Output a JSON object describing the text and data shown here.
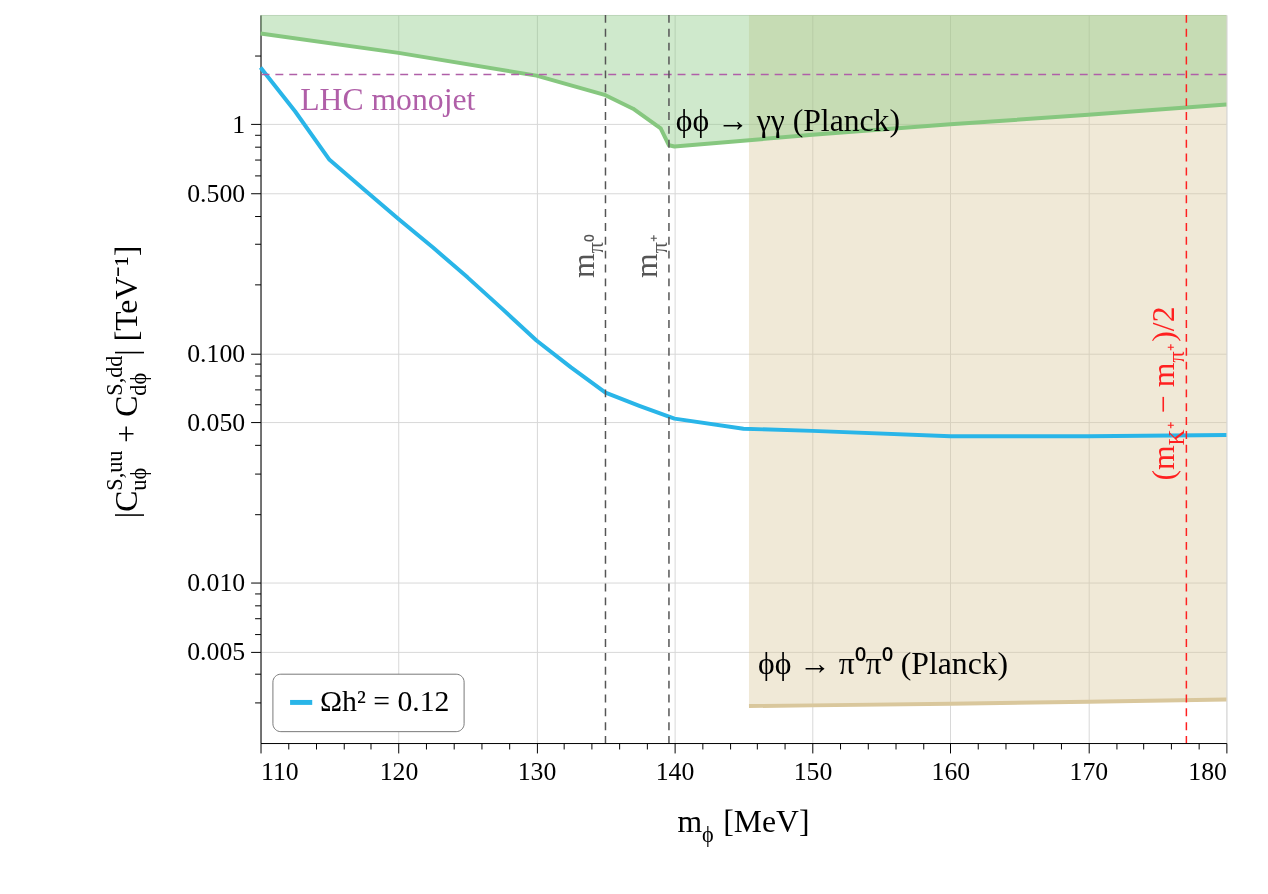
{
  "chart_data": {
    "type": "line",
    "xlabel": "m$_{ϕ}$ [MeV]",
    "ylabel": "|C$_{uϕ}$$^{S,uu}$ + C$_{dϕ}$$^{S,dd}$| [TeV⁻¹]",
    "xlim": [
      110,
      180
    ],
    "ylim": [
      0.002,
      3
    ],
    "log": "y",
    "grid": true,
    "legend": "bottom left",
    "xticks": [
      110,
      {
        "value": 112,
        "label": null
      },
      {
        "value": 114,
        "label": null
      },
      {
        "value": 116,
        "label": null
      },
      {
        "value": 118,
        "label": null
      },
      120,
      {
        "value": 122,
        "label": null
      },
      {
        "value": 124,
        "label": null
      },
      {
        "value": 126,
        "label": null
      },
      {
        "value": 128,
        "label": null
      },
      130,
      {
        "value": 132,
        "label": null
      },
      {
        "value": 134,
        "label": null
      },
      {
        "value": 136,
        "label": null
      },
      {
        "value": 138,
        "label": null
      },
      140,
      {
        "value": 142,
        "label": null
      },
      {
        "value": 144,
        "label": null
      },
      {
        "value": 146,
        "label": null
      },
      {
        "value": 148,
        "label": null
      },
      150,
      {
        "value": 152,
        "label": null
      },
      {
        "value": 154,
        "label": null
      },
      {
        "value": 156,
        "label": null
      },
      {
        "value": 158,
        "label": null
      },
      160,
      {
        "value": 162,
        "label": null
      },
      {
        "value": 164,
        "label": null
      },
      {
        "value": 166,
        "label": null
      },
      {
        "value": 168,
        "label": null
      },
      170,
      {
        "value": 172,
        "label": null
      },
      {
        "value": 174,
        "label": null
      },
      {
        "value": 176,
        "label": null
      },
      {
        "value": 178,
        "label": null
      },
      180
    ],
    "yticks": [
      {
        "value": 0.003,
        "label": null
      },
      {
        "value": 0.004,
        "label": null
      },
      {
        "value": 0.005,
        "label": "0.005"
      },
      {
        "value": 0.006,
        "label": null
      },
      {
        "value": 0.007,
        "label": null
      },
      {
        "value": 0.008,
        "label": null
      },
      {
        "value": 0.009,
        "label": null
      },
      {
        "value": 0.01,
        "label": "0.010"
      },
      {
        "value": 0.02,
        "label": null
      },
      {
        "value": 0.03,
        "label": null
      },
      {
        "value": 0.04,
        "label": null
      },
      {
        "value": 0.05,
        "label": "0.050"
      },
      {
        "value": 0.06,
        "label": null
      },
      {
        "value": 0.07,
        "label": null
      },
      {
        "value": 0.08,
        "label": null
      },
      {
        "value": 0.09,
        "label": null
      },
      {
        "value": 0.1,
        "label": "0.100"
      },
      {
        "value": 0.2,
        "label": null
      },
      {
        "value": 0.3,
        "label": null
      },
      {
        "value": 0.4,
        "label": null
      },
      {
        "value": 0.5,
        "label": "0.500"
      },
      {
        "value": 0.6,
        "label": null
      },
      {
        "value": 0.7,
        "label": null
      },
      {
        "value": 0.8,
        "label": null
      },
      {
        "value": 0.9,
        "label": null
      },
      1,
      {
        "value": 2,
        "label": null
      }
    ],
    "series": [
      {
        "color": "#d9c79c",
        "x": [
          145.4,
          150,
          160,
          170,
          180
        ],
        "values": [
          0.0029,
          0.00292,
          0.00297,
          0.00303,
          0.0031
        ],
        "lower": [
          0.0029,
          0.00292,
          0.00297,
          0.00303,
          0.0031
        ],
        "upper": [
          3,
          3,
          3,
          3,
          3
        ]
      },
      {
        "color": "#86c77f",
        "x": [
          110,
          120,
          130,
          135,
          137,
          139,
          139.6,
          140,
          150,
          160,
          170,
          180
        ],
        "values": [
          2.49,
          2.05,
          1.63,
          1.34,
          1.17,
          0.96,
          0.81,
          0.8,
          0.9,
          1.0,
          1.1,
          1.22
        ],
        "lower": [
          2.49,
          2.05,
          1.63,
          1.34,
          1.17,
          0.96,
          0.81,
          0.8,
          0.9,
          1.0,
          1.1,
          1.22
        ],
        "upper": [
          3,
          3,
          3,
          3,
          3,
          3,
          3,
          3,
          3,
          3,
          3,
          3
        ]
      },
      {
        "name": "Ωh² = 0.12",
        "color": "#29b5e8",
        "x": [
          110,
          112.5,
          115,
          117.5,
          120,
          122.5,
          125,
          127.5,
          130,
          132.5,
          135,
          137.5,
          140,
          145,
          150,
          160,
          170,
          180
        ],
        "values": [
          1.77,
          1.14,
          0.7,
          0.52,
          0.386,
          0.29,
          0.215,
          0.157,
          0.114,
          0.087,
          0.0675,
          0.059,
          0.052,
          0.047,
          0.046,
          0.0436,
          0.0436,
          0.0441
        ]
      }
    ],
    "ref_lines": [
      {
        "axis": "y",
        "value": 1.65,
        "label": "LHC monojet",
        "color": "#b05fa8",
        "line_style": "dashed"
      },
      {
        "axis": "x",
        "value": 135,
        "label": "m$_{π⁰}$",
        "color": "#555555",
        "line_style": "dashed"
      },
      {
        "axis": "x",
        "value": 139.6,
        "label": "m$_{π⁺}$",
        "color": "#555555",
        "line_style": "dashed"
      },
      {
        "axis": "x",
        "value": 177.1,
        "label": "(m$_{K⁺}$ − m$_{π⁺}$)/2",
        "color": "#ff2020",
        "line_style": "dashed"
      }
    ],
    "annotations": [
      "ϕϕ → γγ (Planck)",
      "ϕϕ → π⁰π⁰ (Planck)"
    ]
  }
}
